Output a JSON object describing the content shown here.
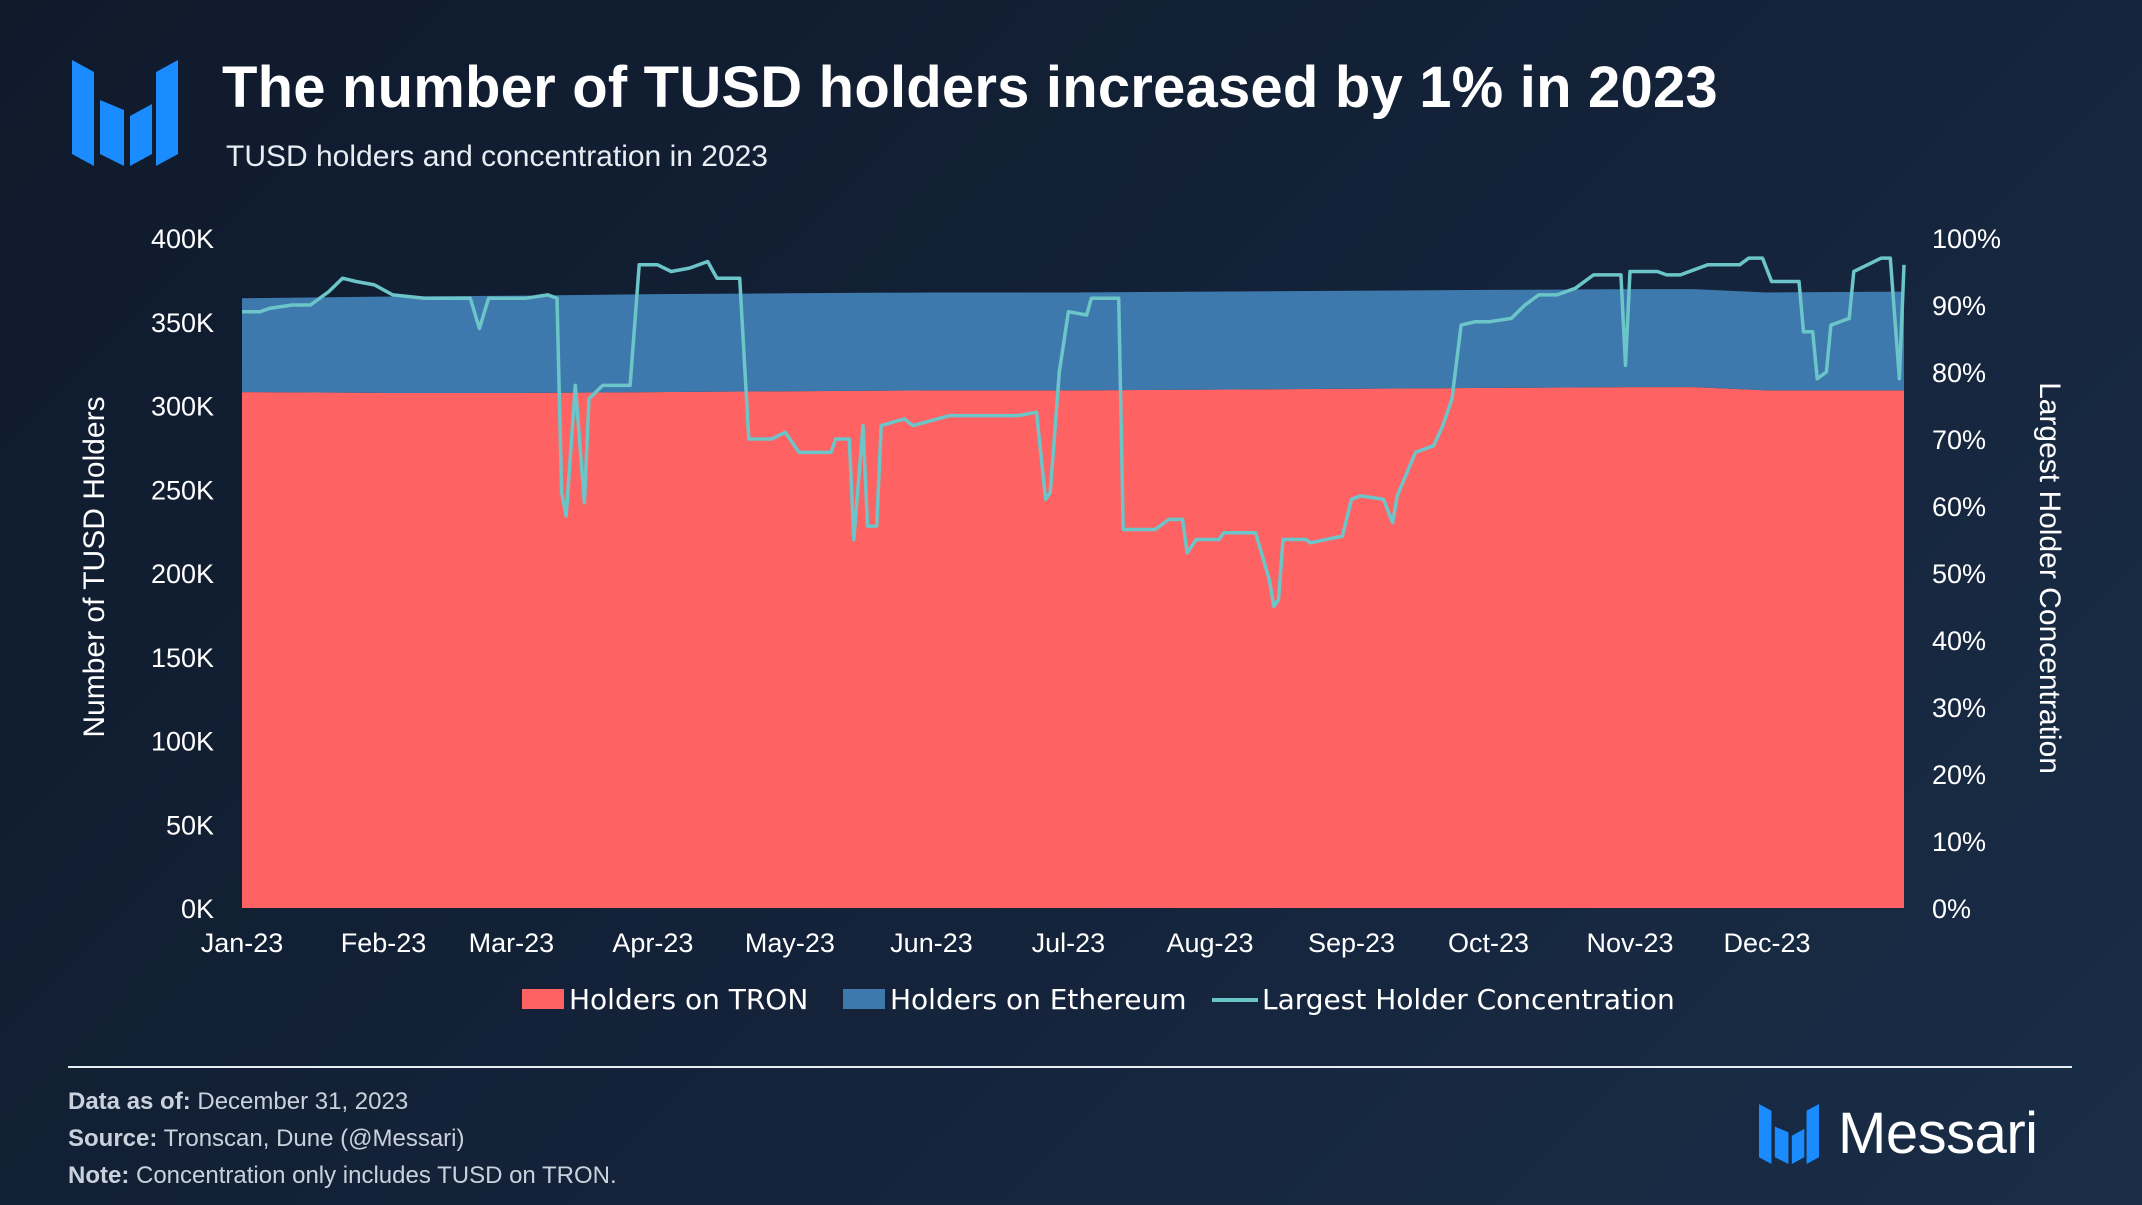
{
  "header": {
    "title": "The number of TUSD holders increased by 1% in 2023",
    "subtitle": "TUSD holders and concentration in 2023"
  },
  "brand": {
    "name": "Messari",
    "color": "#1a8cff"
  },
  "footer": {
    "data_as_of_label": "Data as of:",
    "data_as_of": "December 31, 2023",
    "source_label": "Source:",
    "source": "Tronscan, Dune (@Messari)",
    "note_label": "Note:",
    "note": "Concentration only includes TUSD on TRON."
  },
  "chart_data": {
    "type": "area",
    "x_tick_labels": [
      "Jan-23",
      "Feb-23",
      "Mar-23",
      "Apr-23",
      "May-23",
      "Jun-23",
      "Jul-23",
      "Aug-23",
      "Sep-23",
      "Oct-23",
      "Nov-23",
      "Dec-23"
    ],
    "ylabel": "Number of TUSD Holders",
    "ylabel_right": "Largest Holder Concentration",
    "ylim": [
      0,
      400000
    ],
    "ylim_right": [
      0,
      1
    ],
    "y_ticks": [
      "0K",
      "50K",
      "100K",
      "150K",
      "200K",
      "250K",
      "300K",
      "350K",
      "400K"
    ],
    "y_ticks_right": [
      "0%",
      "10%",
      "20%",
      "30%",
      "40%",
      "50%",
      "60%",
      "70%",
      "80%",
      "90%",
      "100%"
    ],
    "legend": [
      "Holders on TRON",
      "Holders on Ethereum",
      "Largest Holder Concentration"
    ],
    "legend_position": "bottom",
    "colors": {
      "tron": "#ff6262",
      "ethereum": "#3e79ad",
      "concentration": "#6cc5c8"
    },
    "series": [
      {
        "name": "Holders on TRON",
        "points": [
          [
            "2023-01-01",
            308000
          ],
          [
            "2023-02-01",
            307500
          ],
          [
            "2023-03-01",
            307500
          ],
          [
            "2023-04-01",
            308000
          ],
          [
            "2023-05-01",
            308500
          ],
          [
            "2023-06-01",
            309000
          ],
          [
            "2023-07-01",
            309000
          ],
          [
            "2023-08-01",
            309500
          ],
          [
            "2023-09-01",
            310000
          ],
          [
            "2023-10-01",
            310500
          ],
          [
            "2023-11-01",
            311000
          ],
          [
            "2023-11-15",
            311000
          ],
          [
            "2023-12-01",
            309000
          ],
          [
            "2023-12-31",
            309000
          ]
        ]
      },
      {
        "name": "Holders on Ethereum",
        "points": [
          [
            "2023-01-01",
            56000
          ],
          [
            "2023-02-01",
            57500
          ],
          [
            "2023-03-01",
            58000
          ],
          [
            "2023-04-01",
            58500
          ],
          [
            "2023-05-01",
            58500
          ],
          [
            "2023-06-01",
            58500
          ],
          [
            "2023-07-01",
            58500
          ],
          [
            "2023-08-01",
            58500
          ],
          [
            "2023-09-01",
            58500
          ],
          [
            "2023-10-01",
            58500
          ],
          [
            "2023-11-01",
            58500
          ],
          [
            "2023-11-15",
            58500
          ],
          [
            "2023-12-01",
            58500
          ],
          [
            "2023-12-31",
            59000
          ]
        ]
      },
      {
        "name": "Largest Holder Concentration",
        "points": [
          [
            "2023-01-01",
            0.89
          ],
          [
            "2023-01-05",
            0.89
          ],
          [
            "2023-01-07",
            0.895
          ],
          [
            "2023-01-12",
            0.9
          ],
          [
            "2023-01-16",
            0.9
          ],
          [
            "2023-01-20",
            0.92
          ],
          [
            "2023-01-23",
            0.94
          ],
          [
            "2023-01-26",
            0.935
          ],
          [
            "2023-01-30",
            0.93
          ],
          [
            "2023-02-03",
            0.915
          ],
          [
            "2023-02-10",
            0.91
          ],
          [
            "2023-02-17",
            0.91
          ],
          [
            "2023-02-20",
            0.91
          ],
          [
            "2023-02-22",
            0.865
          ],
          [
            "2023-02-24",
            0.91
          ],
          [
            "2023-02-28",
            0.91
          ],
          [
            "2023-03-04",
            0.91
          ],
          [
            "2023-03-09",
            0.915
          ],
          [
            "2023-03-11",
            0.91
          ],
          [
            "2023-03-12",
            0.62
          ],
          [
            "2023-03-13",
            0.585
          ],
          [
            "2023-03-15",
            0.78
          ],
          [
            "2023-03-17",
            0.605
          ],
          [
            "2023-03-18",
            0.76
          ],
          [
            "2023-03-21",
            0.78
          ],
          [
            "2023-03-27",
            0.78
          ],
          [
            "2023-03-29",
            0.96
          ],
          [
            "2023-04-02",
            0.96
          ],
          [
            "2023-04-05",
            0.95
          ],
          [
            "2023-04-09",
            0.955
          ],
          [
            "2023-04-13",
            0.965
          ],
          [
            "2023-04-15",
            0.94
          ],
          [
            "2023-04-20",
            0.94
          ],
          [
            "2023-04-22",
            0.7
          ],
          [
            "2023-04-27",
            0.7
          ],
          [
            "2023-04-30",
            0.71
          ],
          [
            "2023-05-03",
            0.68
          ],
          [
            "2023-05-10",
            0.68
          ],
          [
            "2023-05-11",
            0.7
          ],
          [
            "2023-05-14",
            0.7
          ],
          [
            "2023-05-15",
            0.55
          ],
          [
            "2023-05-17",
            0.72
          ],
          [
            "2023-05-18",
            0.57
          ],
          [
            "2023-05-20",
            0.57
          ],
          [
            "2023-05-21",
            0.72
          ],
          [
            "2023-05-26",
            0.73
          ],
          [
            "2023-05-28",
            0.72
          ],
          [
            "2023-06-05",
            0.735
          ],
          [
            "2023-06-20",
            0.735
          ],
          [
            "2023-06-24",
            0.74
          ],
          [
            "2023-06-26",
            0.61
          ],
          [
            "2023-06-27",
            0.62
          ],
          [
            "2023-06-29",
            0.8
          ],
          [
            "2023-07-01",
            0.89
          ],
          [
            "2023-07-05",
            0.885
          ],
          [
            "2023-07-06",
            0.91
          ],
          [
            "2023-07-12",
            0.91
          ],
          [
            "2023-07-13",
            0.565
          ],
          [
            "2023-07-20",
            0.565
          ],
          [
            "2023-07-23",
            0.58
          ],
          [
            "2023-07-26",
            0.58
          ],
          [
            "2023-07-27",
            0.53
          ],
          [
            "2023-07-29",
            0.55
          ],
          [
            "2023-08-03",
            0.55
          ],
          [
            "2023-08-04",
            0.56
          ],
          [
            "2023-08-11",
            0.56
          ],
          [
            "2023-08-14",
            0.49
          ],
          [
            "2023-08-15",
            0.45
          ],
          [
            "2023-08-16",
            0.46
          ],
          [
            "2023-08-17",
            0.55
          ],
          [
            "2023-08-22",
            0.55
          ],
          [
            "2023-08-23",
            0.545
          ],
          [
            "2023-08-30",
            0.555
          ],
          [
            "2023-09-01",
            0.61
          ],
          [
            "2023-09-03",
            0.615
          ],
          [
            "2023-09-08",
            0.61
          ],
          [
            "2023-09-10",
            0.575
          ],
          [
            "2023-09-11",
            0.615
          ],
          [
            "2023-09-15",
            0.68
          ],
          [
            "2023-09-19",
            0.69
          ],
          [
            "2023-09-21",
            0.72
          ],
          [
            "2023-09-23",
            0.76
          ],
          [
            "2023-09-25",
            0.87
          ],
          [
            "2023-09-28",
            0.875
          ],
          [
            "2023-10-01",
            0.875
          ],
          [
            "2023-10-06",
            0.88
          ],
          [
            "2023-10-09",
            0.9
          ],
          [
            "2023-10-12",
            0.915
          ],
          [
            "2023-10-16",
            0.915
          ],
          [
            "2023-10-20",
            0.925
          ],
          [
            "2023-10-24",
            0.945
          ],
          [
            "2023-10-30",
            0.945
          ],
          [
            "2023-10-31",
            0.81
          ],
          [
            "2023-11-01",
            0.95
          ],
          [
            "2023-11-07",
            0.95
          ],
          [
            "2023-11-09",
            0.945
          ],
          [
            "2023-11-12",
            0.945
          ],
          [
            "2023-11-18",
            0.96
          ],
          [
            "2023-11-20",
            0.96
          ],
          [
            "2023-11-25",
            0.96
          ],
          [
            "2023-11-27",
            0.97
          ],
          [
            "2023-11-30",
            0.97
          ],
          [
            "2023-12-02",
            0.935
          ],
          [
            "2023-12-08",
            0.935
          ],
          [
            "2023-12-09",
            0.86
          ],
          [
            "2023-12-11",
            0.86
          ],
          [
            "2023-12-12",
            0.79
          ],
          [
            "2023-12-14",
            0.8
          ],
          [
            "2023-12-15",
            0.87
          ],
          [
            "2023-12-19",
            0.88
          ],
          [
            "2023-12-20",
            0.95
          ],
          [
            "2023-12-23",
            0.96
          ],
          [
            "2023-12-26",
            0.97
          ],
          [
            "2023-12-28",
            0.97
          ],
          [
            "2023-12-30",
            0.79
          ],
          [
            "2023-12-31",
            0.96
          ]
        ]
      }
    ]
  }
}
